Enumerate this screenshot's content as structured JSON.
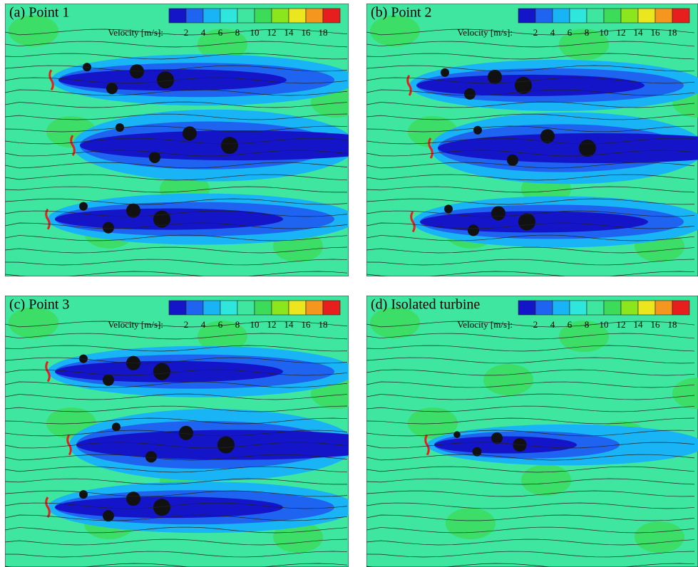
{
  "colorbar_colors": [
    "#1414c8",
    "#1e64f0",
    "#19b4f5",
    "#2ee6dc",
    "#3ee6a0",
    "#3cdc5a",
    "#8ce61e",
    "#ebe61e",
    "#f5961e",
    "#e61e1e"
  ],
  "panels": [
    {
      "title": "(a) Point 1",
      "colorbar": {
        "label": "Velocity [m/s]:",
        "ticks": [
          2,
          4,
          6,
          8,
          10,
          12,
          14,
          16,
          18
        ]
      }
    },
    {
      "title": "(b) Point 2",
      "colorbar": {
        "label": "Velocity [m/s]:",
        "ticks": [
          2,
          4,
          6,
          8,
          10,
          12,
          14,
          16,
          18
        ]
      }
    },
    {
      "title": "(c) Point 3",
      "colorbar": {
        "label": "Velocity [m/s]:",
        "ticks": [
          2,
          4,
          6,
          8,
          10,
          12,
          14,
          16,
          18
        ]
      }
    },
    {
      "title": "(d) Isolated turbine",
      "colorbar": {
        "label": "Velocity [m/s]:",
        "ticks": [
          2,
          4,
          6,
          8,
          10,
          12,
          14,
          16,
          18
        ]
      }
    }
  ]
}
